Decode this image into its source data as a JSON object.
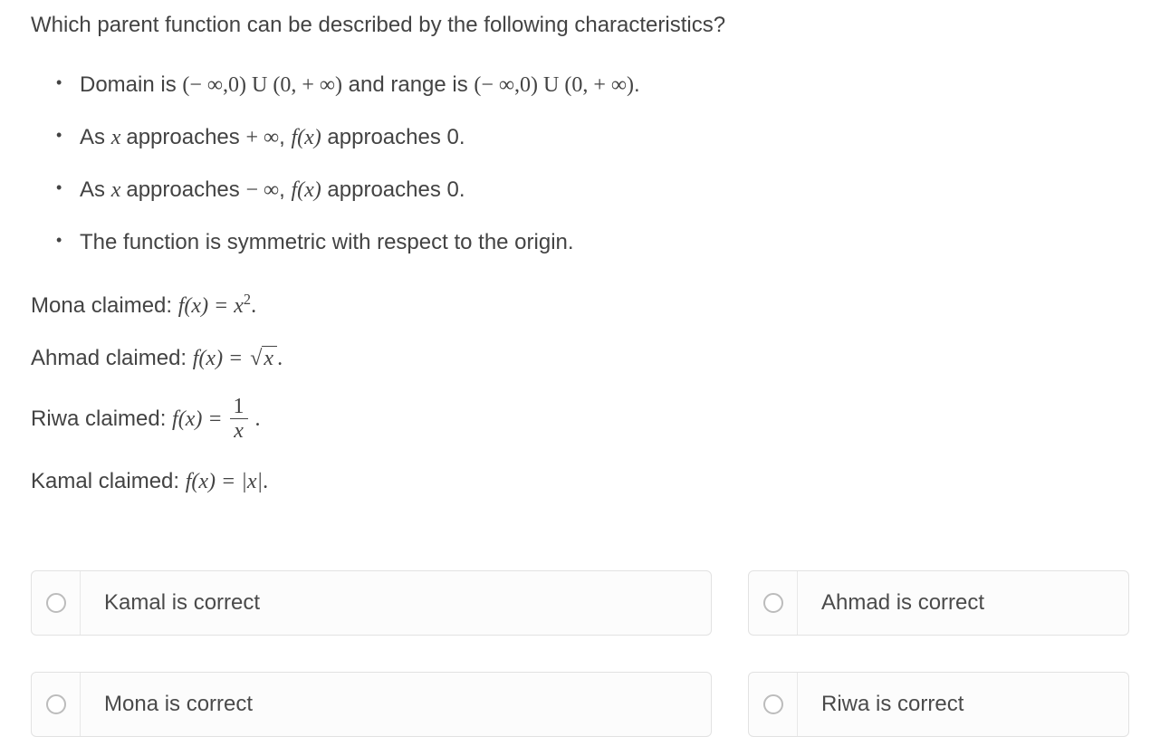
{
  "question": "Which parent function can be described by the following characteristics?",
  "bullets": {
    "b1": {
      "pre": "Domain is ",
      "interval1": "(− ∞,0) U (0, + ∞)",
      "mid": " and range is ",
      "interval2": "(− ∞,0) U (0, + ∞)",
      "post": "."
    },
    "b2": {
      "pre": "As ",
      "x": "x ",
      "approaches": "approaches ",
      "sym": "+ ∞",
      "comma": ", ",
      "fx": "f(x)",
      "tail": " approaches 0."
    },
    "b3": {
      "pre": "As ",
      "x": "x ",
      "approaches": "approaches ",
      "sym": "− ∞",
      "comma": ", ",
      "fx": "f(x)",
      "tail": " approaches 0."
    },
    "b4": "The function is symmetric with respect to the origin."
  },
  "claims": {
    "mona": {
      "label": "Mona claimed: ",
      "fx": "f(x) = x",
      "exp": "2",
      "period": "."
    },
    "ahmad": {
      "label": "Ahmad claimed: ",
      "fx": "f(x) = ",
      "sqrt_sign": "√",
      "arg": "x ",
      "period": "."
    },
    "riwa": {
      "label": "Riwa claimed: ",
      "fx": "f(x) = ",
      "num": "1",
      "den": "x",
      "period": " ."
    },
    "kamal": {
      "label": "Kamal claimed: ",
      "fx": "f(x) = |x|",
      "period": "."
    }
  },
  "options": {
    "a": "Kamal is correct",
    "b": "Ahmad is correct",
    "c": "Mona is correct",
    "d": "Riwa is correct"
  },
  "colors": {
    "text": "#434343",
    "border": "#e2e2e2",
    "radio_border": "#bcbcbc",
    "background": "#ffffff",
    "option_bg": "#fcfcfc"
  }
}
